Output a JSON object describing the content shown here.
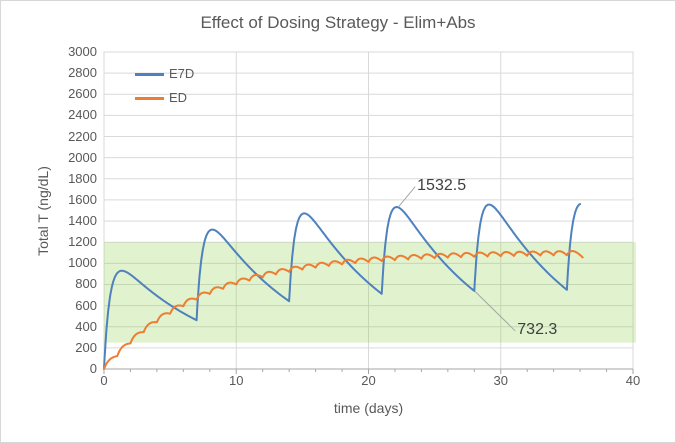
{
  "figure": {
    "background": "#ffffff",
    "border_color": "#d7d7d7"
  },
  "chart_data": {
    "type": "line",
    "title": "Effect of Dosing Strategy - Elim+Abs",
    "xlabel": "time (days)",
    "ylabel": "Total T (ng/dL)",
    "xlim": [
      0,
      40
    ],
    "ylim": [
      0,
      3000
    ],
    "x_major_tick_step": 10,
    "x_minor_tick_step": 2,
    "y_tick_step": 200,
    "grid": true,
    "legend_position": "inside-top-left",
    "colors": {
      "grid": "#d9d9d9",
      "axis": "#a6a6a6",
      "tick_text": "#595959",
      "title_text": "#595959",
      "annotation_text": "#404040",
      "leader": "#a6a6a6"
    },
    "reference_band": {
      "label": "target-range-band",
      "y_min": 250,
      "y_max": 1200,
      "fill": "#92D050",
      "opacity": 0.28
    },
    "series": [
      {
        "name": "E7D",
        "color": "#4E81BD",
        "line_width": 2,
        "model": {
          "type": "sum-of-bateman",
          "dose_times": [
            0,
            7,
            14,
            21,
            28,
            35
          ],
          "amplitude": 1189,
          "ka": 2.2,
          "ke": 0.135,
          "t_end": 36.0
        },
        "observed_extrema": {
          "peaks": [
            [
              1.5,
              930
            ],
            [
              8.4,
              1330
            ],
            [
              15.4,
              1460
            ],
            [
              22.4,
              1532.5
            ],
            [
              29.4,
              1545
            ],
            [
              36.0,
              1560
            ]
          ],
          "troughs": [
            [
              7,
              465
            ],
            [
              14,
              650
            ],
            [
              21,
              710
            ],
            [
              28,
              732.3
            ],
            [
              35,
              745
            ]
          ]
        }
      },
      {
        "name": "ED",
        "color": "#ED7D31",
        "line_width": 2,
        "model": {
          "type": "sum-of-bateman",
          "dose_times": [
            0,
            1,
            2,
            3,
            4,
            5,
            6,
            7,
            8,
            9,
            10,
            11,
            12,
            13,
            14,
            15,
            16,
            17,
            18,
            19,
            20,
            21,
            22,
            23,
            24,
            25,
            26,
            27,
            28,
            29,
            30,
            31,
            32,
            33,
            34,
            35
          ],
          "amplitude": 160,
          "ka": 2.2,
          "ke": 0.135,
          "t_end": 36.2
        },
        "observed_values": [
          [
            7,
            600
          ],
          [
            14,
            790
          ],
          [
            21,
            1040
          ],
          [
            28,
            1095
          ],
          [
            35,
            1130
          ]
        ]
      }
    ],
    "annotations": [
      {
        "label": "1532.5",
        "target": {
          "day": 22.3,
          "value": 1540
        },
        "label_anchor": {
          "day": 23.68,
          "value": 1820
        }
      },
      {
        "label": "732.3",
        "target": {
          "day": 28.05,
          "value": 735
        },
        "label_anchor": {
          "day": 31.25,
          "value": 455
        }
      }
    ]
  }
}
